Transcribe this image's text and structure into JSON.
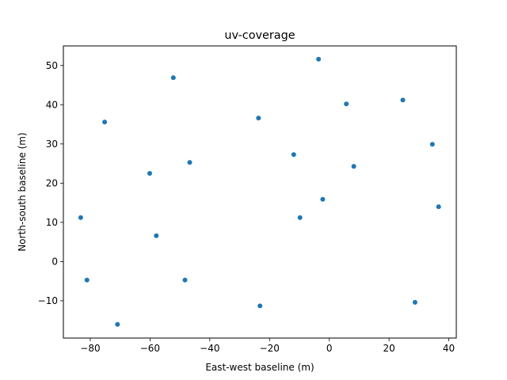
{
  "chart_data": {
    "type": "scatter",
    "title": "uv-coverage",
    "xlabel": "East-west baseline (m)",
    "ylabel": "North-south baseline (m)",
    "xlim": [
      -89.0,
      42.5
    ],
    "ylim": [
      -19.5,
      55.0
    ],
    "xticks": [
      -80,
      -60,
      -40,
      -20,
      0,
      20,
      40
    ],
    "yticks": [
      -10,
      0,
      10,
      20,
      30,
      40,
      50
    ],
    "grid": false,
    "marker_color": "#1f77b4",
    "points": [
      {
        "x": -3.6,
        "y": 51.6
      },
      {
        "x": -52.2,
        "y": 46.9
      },
      {
        "x": 5.7,
        "y": 40.2
      },
      {
        "x": 24.6,
        "y": 41.2
      },
      {
        "x": -75.2,
        "y": 35.6
      },
      {
        "x": -23.7,
        "y": 36.6
      },
      {
        "x": 34.5,
        "y": 29.9
      },
      {
        "x": -11.9,
        "y": 27.3
      },
      {
        "x": 8.2,
        "y": 24.3
      },
      {
        "x": -46.7,
        "y": 25.3
      },
      {
        "x": -60.1,
        "y": 22.5
      },
      {
        "x": -2.2,
        "y": 15.9
      },
      {
        "x": 36.6,
        "y": 14.0
      },
      {
        "x": -83.2,
        "y": 11.2
      },
      {
        "x": -9.8,
        "y": 11.2
      },
      {
        "x": -57.9,
        "y": 6.6
      },
      {
        "x": -81.1,
        "y": -4.7
      },
      {
        "x": -48.3,
        "y": -4.7
      },
      {
        "x": 28.7,
        "y": -10.4
      },
      {
        "x": -23.2,
        "y": -11.3
      },
      {
        "x": -70.9,
        "y": -16.0
      }
    ]
  }
}
